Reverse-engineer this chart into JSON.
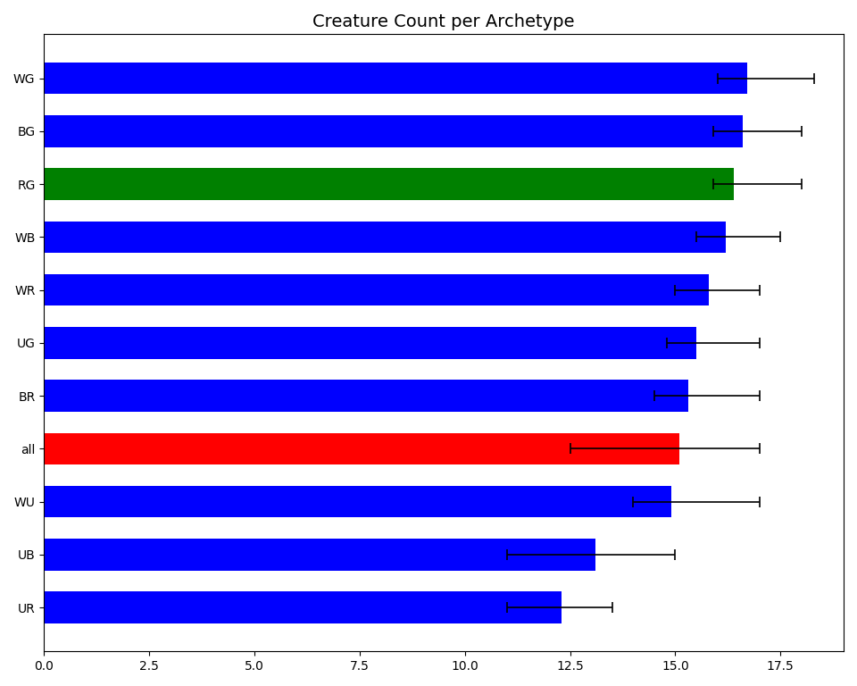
{
  "title": "Creature Count per Archetype",
  "categories": [
    "WG",
    "BG",
    "RG",
    "WB",
    "WR",
    "UG",
    "BR",
    "all",
    "WU",
    "UB",
    "UR"
  ],
  "values": [
    16.7,
    16.6,
    16.4,
    16.2,
    15.8,
    15.5,
    15.3,
    15.1,
    14.9,
    13.1,
    12.3
  ],
  "xerr_low": [
    0.7,
    0.7,
    0.5,
    0.7,
    0.8,
    0.7,
    0.8,
    2.6,
    0.9,
    2.1,
    1.3
  ],
  "xerr_high": [
    1.6,
    1.4,
    1.6,
    1.3,
    1.2,
    1.5,
    1.7,
    1.9,
    2.1,
    1.9,
    1.2
  ],
  "colors": [
    "blue",
    "blue",
    "green",
    "blue",
    "blue",
    "blue",
    "blue",
    "red",
    "blue",
    "blue",
    "blue"
  ],
  "xlim": [
    0,
    19
  ],
  "background_color": "#ffffff",
  "title_fontsize": 14
}
